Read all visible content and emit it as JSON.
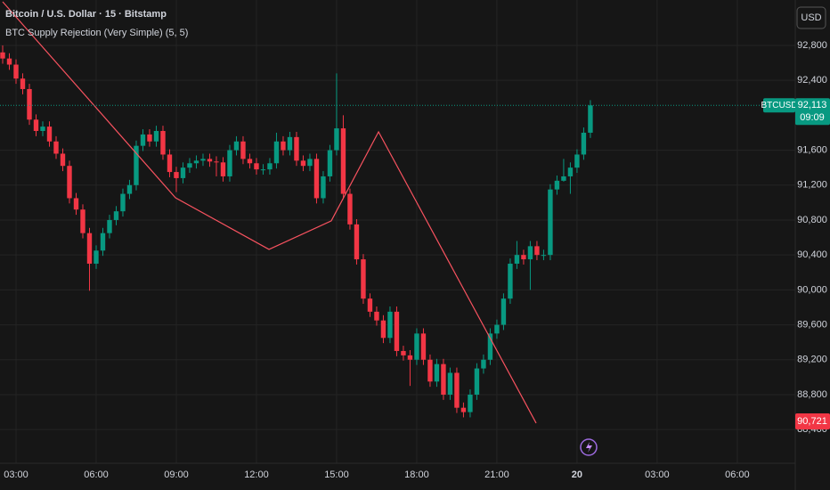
{
  "chart_data": {
    "type": "candlestick",
    "title": "Bitcoin / U.S. Dollar · 15 · Bitstamp",
    "currency": "USD",
    "up_color": "#089981",
    "down_color": "#f23645",
    "grid": true,
    "xlim": [
      2.4,
      32.17
    ],
    "ylim": [
      88014,
      93320
    ],
    "xticks": [
      {
        "value": 3,
        "label": "03:00"
      },
      {
        "value": 6,
        "label": "06:00"
      },
      {
        "value": 9,
        "label": "09:00"
      },
      {
        "value": 12,
        "label": "12:00"
      },
      {
        "value": 15,
        "label": "15:00"
      },
      {
        "value": 18,
        "label": "18:00"
      },
      {
        "value": 21,
        "label": "21:00"
      },
      {
        "value": 24,
        "label": "20"
      },
      {
        "value": 27,
        "label": "03:00"
      },
      {
        "value": 30,
        "label": "06:00"
      }
    ],
    "yticks": [
      {
        "value": 92800,
        "label": "92,800"
      },
      {
        "value": 92400,
        "label": "92,400"
      },
      {
        "value": 91600,
        "label": "91,600"
      },
      {
        "value": 91200,
        "label": "91,200"
      },
      {
        "value": 90800,
        "label": "90,800"
      },
      {
        "value": 90400,
        "label": "90,400"
      },
      {
        "value": 90000,
        "label": "90,000"
      },
      {
        "value": 89600,
        "label": "89,600"
      },
      {
        "value": 89200,
        "label": "89,200"
      },
      {
        "value": 88800,
        "label": "88,800"
      },
      {
        "value": 88400,
        "label": "88,400"
      }
    ],
    "x": [
      2.5,
      2.75,
      3,
      3.25,
      3.5,
      3.75,
      4,
      4.25,
      4.5,
      4.75,
      5,
      5.25,
      5.5,
      5.75,
      6,
      6.25,
      6.5,
      6.75,
      7,
      7.25,
      7.5,
      7.75,
      8,
      8.25,
      8.5,
      8.75,
      9,
      9.25,
      9.5,
      9.75,
      10,
      10.25,
      10.5,
      10.75,
      11,
      11.25,
      11.5,
      11.75,
      12,
      12.25,
      12.5,
      12.75,
      13,
      13.25,
      13.5,
      13.75,
      14,
      14.25,
      14.5,
      14.75,
      15,
      15.25,
      15.5,
      15.75,
      16,
      16.25,
      16.5,
      16.75,
      17,
      17.25,
      17.5,
      17.75,
      18,
      18.25,
      18.5,
      18.75,
      19,
      19.25,
      19.5,
      19.75,
      20,
      20.25,
      20.5,
      20.75,
      21,
      21.25,
      21.5,
      21.75,
      22,
      22.25,
      22.5,
      22.75,
      23,
      23.25,
      23.5,
      23.75,
      24,
      24.25,
      24.5
    ],
    "open": [
      92720,
      92650,
      92580,
      92420,
      92300,
      91950,
      91820,
      91870,
      91700,
      91560,
      91420,
      91050,
      90920,
      90650,
      90300,
      90450,
      90650,
      90800,
      90900,
      91100,
      91200,
      91650,
      91780,
      91700,
      91820,
      91550,
      91350,
      91280,
      91400,
      91450,
      91480,
      91500,
      91470,
      91460,
      91300,
      91600,
      91700,
      91500,
      91450,
      91380,
      91380,
      91450,
      91700,
      91600,
      91750,
      91480,
      91420,
      91500,
      91050,
      91300,
      91600,
      91850,
      91100,
      90750,
      90350,
      89900,
      89750,
      89650,
      89450,
      89750,
      89300,
      89250,
      89200,
      89500,
      89200,
      88950,
      89150,
      88800,
      89050,
      88650,
      88600,
      88800,
      89100,
      89200,
      89500,
      89600,
      89900,
      90300,
      90400,
      90350,
      90500,
      90400,
      90400,
      91150,
      91250,
      91300,
      91400,
      91550,
      91800
    ],
    "high": [
      92800,
      92710,
      92640,
      92480,
      92360,
      92010,
      91930,
      91930,
      91760,
      91620,
      91480,
      91110,
      90980,
      90710,
      90510,
      90710,
      90860,
      90960,
      91160,
      91260,
      91710,
      91840,
      91840,
      91880,
      91880,
      91610,
      91410,
      91460,
      91510,
      91540,
      91560,
      91560,
      91530,
      91520,
      91660,
      91760,
      91760,
      91560,
      91510,
      91440,
      91510,
      91800,
      91760,
      91810,
      91810,
      91540,
      91560,
      91560,
      91360,
      91660,
      92480,
      92000,
      91160,
      90810,
      90410,
      89960,
      89810,
      89710,
      89810,
      89810,
      89360,
      89310,
      89560,
      89560,
      89260,
      89210,
      89210,
      89110,
      89110,
      88710,
      88860,
      89160,
      89260,
      89560,
      89660,
      89960,
      90360,
      90560,
      90460,
      90560,
      90560,
      90460,
      91210,
      91310,
      91500,
      91460,
      91610,
      91860,
      92173
    ],
    "low": [
      92590,
      92520,
      92360,
      92240,
      91890,
      91760,
      91760,
      91640,
      91500,
      91360,
      90990,
      90860,
      90590,
      89990,
      90240,
      90390,
      90590,
      90740,
      90840,
      91040,
      91140,
      91590,
      91640,
      91640,
      91490,
      91290,
      91120,
      91220,
      91340,
      91390,
      91420,
      91410,
      91300,
      91240,
      91240,
      91540,
      91440,
      91390,
      91320,
      91320,
      91320,
      91390,
      91540,
      91540,
      91420,
      91360,
      91360,
      90990,
      90990,
      91240,
      91540,
      91040,
      90690,
      90290,
      89840,
      89690,
      89590,
      89390,
      89390,
      89240,
      89190,
      88900,
      89140,
      89140,
      88890,
      88890,
      88740,
      88740,
      88590,
      88540,
      88540,
      88740,
      89040,
      89140,
      89440,
      89540,
      89840,
      90240,
      90290,
      90000,
      90340,
      90340,
      90340,
      91090,
      91240,
      91100,
      91340,
      91490,
      91740
    ],
    "close": [
      92650,
      92580,
      92420,
      92300,
      91950,
      91820,
      91870,
      91700,
      91560,
      91420,
      91050,
      90920,
      90650,
      90300,
      90450,
      90650,
      90800,
      90900,
      91100,
      91200,
      91650,
      91780,
      91700,
      91820,
      91550,
      91350,
      91280,
      91400,
      91450,
      91480,
      91500,
      91470,
      91460,
      91300,
      91600,
      91700,
      91500,
      91450,
      91380,
      91380,
      91450,
      91700,
      91600,
      91750,
      91480,
      91420,
      91500,
      91050,
      91300,
      91600,
      91850,
      91100,
      90750,
      90350,
      89900,
      89750,
      89650,
      89450,
      89750,
      89300,
      89250,
      89200,
      89500,
      89200,
      88950,
      89150,
      88800,
      89050,
      88650,
      88600,
      88800,
      89100,
      89200,
      89500,
      89600,
      89900,
      90300,
      90400,
      90350,
      90500,
      90400,
      90400,
      91150,
      91250,
      91300,
      91400,
      91550,
      91800,
      92113
    ],
    "last_price": {
      "symbol": "BTCUSD",
      "label": "92,113",
      "countdown": "09:09",
      "color": "#089981"
    },
    "overlay": {
      "type": "line",
      "name": "BTC Supply Rejection (Very Simple) (5, 5)",
      "color": "#f7525f",
      "x": [
        2.5,
        8.97,
        12.47,
        14.8,
        16.57,
        22.47
      ],
      "values": [
        93300,
        91055,
        90464,
        90790,
        91810,
        88474
      ],
      "value_label": "90,721"
    }
  }
}
